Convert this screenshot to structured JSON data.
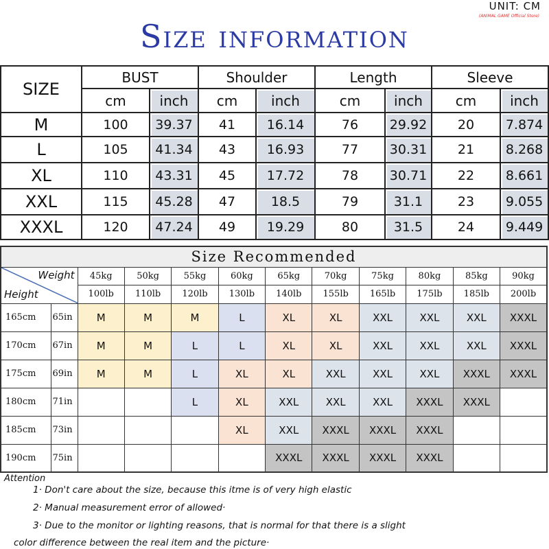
{
  "unit": "UNIT: CM",
  "store_tag": "(ANIMAL GAME Official Store)",
  "title": "Size information",
  "size_table": {
    "size_label": "SIZE",
    "groups": [
      "BUST",
      "Shoulder",
      "Length",
      "Sleeve"
    ],
    "units": [
      "cm",
      "inch"
    ],
    "rows": [
      {
        "size": "M",
        "values": [
          "100",
          "39.37",
          "41",
          "16.14",
          "76",
          "29.92",
          "20",
          "7.874"
        ]
      },
      {
        "size": "L",
        "values": [
          "105",
          "41.34",
          "43",
          "16.93",
          "77",
          "30.31",
          "21",
          "8.268"
        ]
      },
      {
        "size": "XL",
        "values": [
          "110",
          "43.31",
          "45",
          "17.72",
          "78",
          "30.71",
          "22",
          "8.661"
        ]
      },
      {
        "size": "XXL",
        "values": [
          "115",
          "45.28",
          "47",
          "18.5",
          "79",
          "31.1",
          "23",
          "9.055"
        ]
      },
      {
        "size": "XXXL",
        "values": [
          "120",
          "47.24",
          "49",
          "19.29",
          "80",
          "31.5",
          "24",
          "9.449"
        ]
      }
    ]
  },
  "recommend": {
    "title": "Size Recommended",
    "weight_label": "Weight",
    "height_label": "Height",
    "weights_kg": [
      "45kg",
      "50kg",
      "55kg",
      "60kg",
      "65kg",
      "70kg",
      "75kg",
      "80kg",
      "85kg",
      "90kg"
    ],
    "weights_lb": [
      "100lb",
      "110lb",
      "120lb",
      "130lb",
      "140lb",
      "155lb",
      "165lb",
      "175lb",
      "185lb",
      "200lb"
    ],
    "rows": [
      {
        "cm": "165cm",
        "in": "65in",
        "sizes": [
          "M",
          "M",
          "M",
          "L",
          "XL",
          "XL",
          "XXL",
          "XXL",
          "XXL",
          "XXXL"
        ]
      },
      {
        "cm": "170cm",
        "in": "67in",
        "sizes": [
          "M",
          "M",
          "L",
          "L",
          "XL",
          "XL",
          "XXL",
          "XXL",
          "XXL",
          "XXXL"
        ]
      },
      {
        "cm": "175cm",
        "in": "69in",
        "sizes": [
          "M",
          "M",
          "L",
          "XL",
          "XL",
          "XXL",
          "XXL",
          "XXL",
          "XXXL",
          "XXXL"
        ]
      },
      {
        "cm": "180cm",
        "in": "71in",
        "sizes": [
          "",
          "",
          "L",
          "XL",
          "XXL",
          "XXL",
          "XXL",
          "XXXL",
          "XXXL",
          ""
        ]
      },
      {
        "cm": "185cm",
        "in": "73in",
        "sizes": [
          "",
          "",
          "",
          "XL",
          "XXL",
          "XXXL",
          "XXXL",
          "XXXL",
          "",
          ""
        ]
      },
      {
        "cm": "190cm",
        "in": "75in",
        "sizes": [
          "",
          "",
          "",
          "",
          "XXXL",
          "XXXL",
          "XXXL",
          "XXXL",
          "",
          ""
        ]
      }
    ],
    "colors": {
      "M": "#fdf0cc",
      "L": "#dae0f0",
      "XL": "#fbe3d4",
      "XXL": "#dde3ea",
      "XXXL": "#c4c4c4"
    }
  },
  "attention": {
    "label": "Attention",
    "notes": [
      "1· Don't care about the size, because this itme is of very high elastic",
      "2· Manual measurement error of allowed·",
      "3·  Due to the monitor or lighting reasons, that is normal for that there is a slight",
      "color difference between the real item and the picture·"
    ]
  }
}
